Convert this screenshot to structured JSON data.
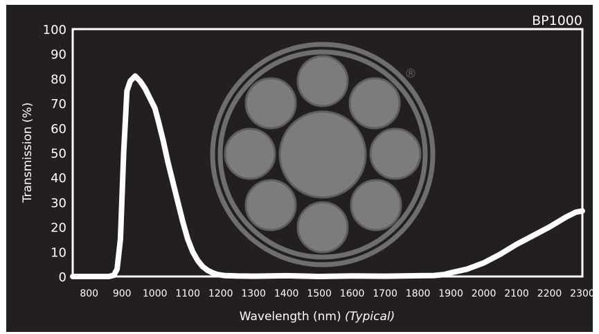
{
  "chart_data": {
    "type": "line",
    "title": "BP1000",
    "xlabel": "Wavelength (nm)",
    "xlabel_note": "(Typical)",
    "ylabel": "Transmission (%)",
    "xlim": [
      750,
      2300
    ],
    "ylim": [
      0,
      100
    ],
    "xticks": [
      800,
      900,
      1000,
      1100,
      1200,
      1300,
      1400,
      1500,
      1600,
      1700,
      1800,
      1900,
      2000,
      2100,
      2200,
      2300
    ],
    "yticks": [
      0,
      10,
      20,
      30,
      40,
      50,
      60,
      70,
      80,
      90,
      100
    ],
    "grid": false,
    "line_color": "#ffffff",
    "background": "#231f20",
    "series": [
      {
        "x": [
          750,
          860,
          875,
          885,
          895,
          905,
          915,
          925,
          940,
          955,
          970,
          985,
          1000,
          1010,
          1025,
          1040,
          1055,
          1070,
          1085,
          1100,
          1115,
          1130,
          1145,
          1160,
          1175,
          1190,
          1210,
          1250,
          1300,
          1400,
          1500,
          1600,
          1700,
          1800,
          1850,
          1880,
          1900,
          1950,
          2000,
          2050,
          2100,
          2150,
          2200,
          2250,
          2280,
          2300
        ],
        "y": [
          0,
          0,
          0.5,
          3,
          15,
          50,
          75,
          79,
          81,
          79,
          76,
          72,
          68,
          63,
          55,
          46,
          38,
          30,
          22,
          15,
          10,
          6.5,
          4,
          2.5,
          1.5,
          0.8,
          0.4,
          0.2,
          0.1,
          0.3,
          0,
          0.2,
          0.1,
          0.3,
          0.4,
          0.8,
          1.5,
          3,
          5.5,
          9,
          13,
          16.5,
          20,
          24,
          26,
          26.5
        ]
      }
    ]
  },
  "logo_icon": "edmund-optics-circle-logo",
  "logo_mark": "®"
}
